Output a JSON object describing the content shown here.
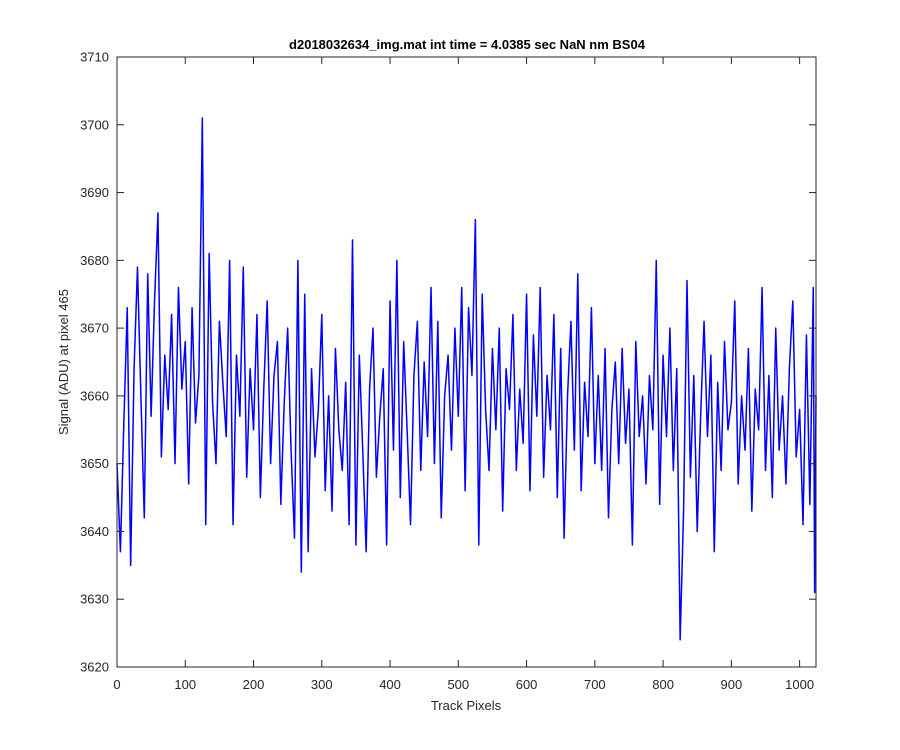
{
  "chart_data": {
    "type": "line",
    "title": "d2018032634_img.mat int time = 4.0385 sec  NaN nm BS04",
    "xlabel": "Track Pixels",
    "ylabel": "Signal (ADU) at pixel 465",
    "xlim": [
      0,
      1024
    ],
    "ylim": [
      3620,
      3710
    ],
    "xticks": [
      0,
      100,
      200,
      300,
      400,
      500,
      600,
      700,
      800,
      900,
      1000
    ],
    "yticks": [
      3620,
      3630,
      3640,
      3650,
      3660,
      3670,
      3680,
      3690,
      3700,
      3710
    ],
    "xtick_labels": [
      "0",
      "100",
      "200",
      "300",
      "400",
      "500",
      "600",
      "700",
      "800",
      "900",
      "1000"
    ],
    "ytick_labels": [
      "3620",
      "3630",
      "3640",
      "3650",
      "3660",
      "3670",
      "3680",
      "3690",
      "3700",
      "3710"
    ],
    "grid": false,
    "box": true,
    "line_color": "#0000ff",
    "series": [
      {
        "sample_note": "",
        "x": [
          0,
          5,
          10,
          15,
          20,
          25,
          30,
          35,
          40,
          45,
          50,
          55,
          60,
          65,
          70,
          75,
          80,
          85,
          90,
          95,
          100,
          105,
          110,
          115,
          120,
          125,
          130,
          135,
          140,
          145,
          150,
          155,
          160,
          165,
          170,
          175,
          180,
          185,
          190,
          195,
          200,
          205,
          210,
          215,
          220,
          225,
          230,
          235,
          240,
          245,
          250,
          255,
          260,
          265,
          270,
          275,
          280,
          285,
          290,
          295,
          300,
          305,
          310,
          315,
          320,
          325,
          330,
          335,
          340,
          345,
          350,
          355,
          360,
          365,
          370,
          375,
          380,
          385,
          390,
          395,
          400,
          405,
          410,
          415,
          420,
          425,
          430,
          435,
          440,
          445,
          450,
          455,
          460,
          465,
          470,
          475,
          480,
          485,
          490,
          495,
          500,
          505,
          510,
          515,
          520,
          525,
          530,
          535,
          540,
          545,
          550,
          555,
          560,
          565,
          570,
          575,
          580,
          585,
          590,
          595,
          600,
          605,
          610,
          615,
          620,
          625,
          630,
          635,
          640,
          645,
          650,
          655,
          660,
          665,
          670,
          675,
          680,
          685,
          690,
          695,
          700,
          705,
          710,
          715,
          720,
          725,
          730,
          735,
          740,
          745,
          750,
          755,
          760,
          765,
          770,
          775,
          780,
          785,
          790,
          795,
          800,
          805,
          810,
          815,
          820,
          825,
          830,
          835,
          840,
          845,
          850,
          855,
          860,
          865,
          870,
          875,
          880,
          885,
          890,
          895,
          900,
          905,
          910,
          915,
          920,
          925,
          930,
          935,
          940,
          945,
          950,
          955,
          960,
          965,
          970,
          975,
          980,
          985,
          990,
          995,
          1000,
          1005,
          1010,
          1015,
          1020,
          1022,
          1024
        ],
        "y": [
          3650,
          3637,
          3656,
          3673,
          3635,
          3664,
          3679,
          3660,
          3642,
          3678,
          3657,
          3674,
          3687,
          3651,
          3666,
          3658,
          3672,
          3650,
          3676,
          3661,
          3668,
          3647,
          3673,
          3656,
          3663,
          3701,
          3641,
          3681,
          3659,
          3650,
          3671,
          3662,
          3654,
          3680,
          3641,
          3666,
          3657,
          3679,
          3648,
          3664,
          3655,
          3672,
          3645,
          3661,
          3674,
          3650,
          3663,
          3668,
          3644,
          3659,
          3670,
          3652,
          3639,
          3680,
          3634,
          3675,
          3637,
          3664,
          3651,
          3658,
          3672,
          3646,
          3660,
          3643,
          3667,
          3655,
          3649,
          3662,
          3641,
          3683,
          3638,
          3666,
          3652,
          3637,
          3661,
          3670,
          3648,
          3657,
          3664,
          3638,
          3674,
          3652,
          3680,
          3645,
          3668,
          3655,
          3641,
          3663,
          3671,
          3649,
          3665,
          3654,
          3676,
          3650,
          3671,
          3642,
          3660,
          3666,
          3652,
          3670,
          3657,
          3676,
          3646,
          3673,
          3663,
          3686,
          3638,
          3675,
          3658,
          3649,
          3667,
          3655,
          3670,
          3643,
          3664,
          3658,
          3672,
          3649,
          3661,
          3653,
          3675,
          3646,
          3669,
          3657,
          3676,
          3648,
          3663,
          3655,
          3672,
          3645,
          3667,
          3639,
          3660,
          3671,
          3652,
          3678,
          3646,
          3662,
          3654,
          3673,
          3650,
          3663,
          3649,
          3667,
          3642,
          3658,
          3665,
          3650,
          3667,
          3653,
          3661,
          3638,
          3668,
          3654,
          3660,
          3647,
          3663,
          3655,
          3680,
          3644,
          3666,
          3654,
          3670,
          3649,
          3664,
          3624,
          3643,
          3677,
          3648,
          3663,
          3640,
          3657,
          3671,
          3654,
          3666,
          3637,
          3662,
          3649,
          3668,
          3655,
          3659,
          3674,
          3647,
          3660,
          3652,
          3667,
          3643,
          3661,
          3655,
          3676,
          3649,
          3663,
          3645,
          3670,
          3652,
          3660,
          3647,
          3664,
          3674,
          3651,
          3658,
          3641,
          3669,
          3644,
          3676,
          3631,
          3660
        ]
      }
    ]
  }
}
